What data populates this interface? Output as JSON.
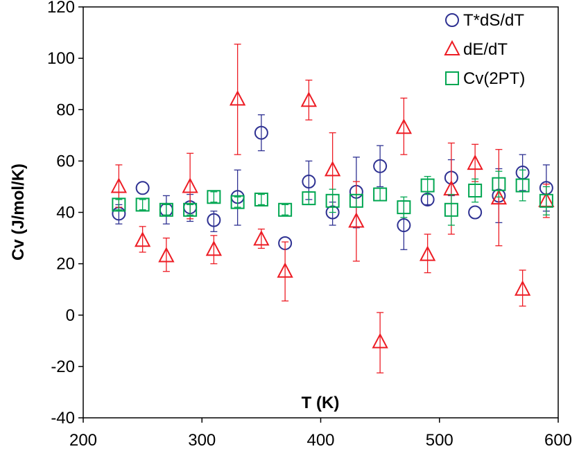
{
  "chart_data": {
    "type": "scatter",
    "xlabel": "T (K)",
    "ylabel": "Cv (J/mol/K)",
    "xlim": [
      200,
      600
    ],
    "ylim": [
      -40,
      120
    ],
    "xticks": [
      200,
      300,
      400,
      500,
      600
    ],
    "yticks": [
      -40,
      -20,
      0,
      20,
      40,
      60,
      80,
      100,
      120
    ],
    "grid": false,
    "legend_position": "top-right",
    "series": [
      {
        "name": "T*dS/dT",
        "marker": "circle",
        "color": "#2e3192",
        "points": [
          {
            "x": 230,
            "y": 39.5,
            "err_low": 35.5,
            "err_high": 43
          },
          {
            "x": 250,
            "y": 49.5,
            "err_low": 49.5,
            "err_high": 49.5
          },
          {
            "x": 270,
            "y": 41,
            "err_low": 35.5,
            "err_high": 46.5
          },
          {
            "x": 290,
            "y": 42,
            "err_low": 36.5,
            "err_high": 47
          },
          {
            "x": 310,
            "y": 37,
            "err_low": 32.5,
            "err_high": 40.5
          },
          {
            "x": 330,
            "y": 46,
            "err_low": 35,
            "err_high": 56.5
          },
          {
            "x": 350,
            "y": 71,
            "err_low": 64,
            "err_high": 78
          },
          {
            "x": 370,
            "y": 28,
            "err_low": 28,
            "err_high": 28
          },
          {
            "x": 390,
            "y": 52,
            "err_low": 45,
            "err_high": 60
          },
          {
            "x": 410,
            "y": 40,
            "err_low": 35,
            "err_high": 44
          },
          {
            "x": 430,
            "y": 48,
            "err_low": 34,
            "err_high": 61.5
          },
          {
            "x": 450,
            "y": 58,
            "err_low": 50,
            "err_high": 66
          },
          {
            "x": 470,
            "y": 35,
            "err_low": 25.5,
            "err_high": 44.5
          },
          {
            "x": 490,
            "y": 45,
            "err_low": 43,
            "err_high": 47
          },
          {
            "x": 510,
            "y": 53.5,
            "err_low": 46.5,
            "err_high": 60.5
          },
          {
            "x": 530,
            "y": 40,
            "err_low": 40,
            "err_high": 40
          },
          {
            "x": 550,
            "y": 46.5,
            "err_low": 36,
            "err_high": 57
          },
          {
            "x": 570,
            "y": 55.5,
            "err_low": 48.5,
            "err_high": 62.5
          },
          {
            "x": 590,
            "y": 49.5,
            "err_low": 40.5,
            "err_high": 58.5
          }
        ]
      },
      {
        "name": "dE/dT",
        "marker": "triangle",
        "color": "#ed1c24",
        "points": [
          {
            "x": 230,
            "y": 50,
            "err_low": 42,
            "err_high": 58.5
          },
          {
            "x": 250,
            "y": 29,
            "err_low": 24.5,
            "err_high": 34.5
          },
          {
            "x": 270,
            "y": 23,
            "err_low": 17,
            "err_high": 30
          },
          {
            "x": 290,
            "y": 50,
            "err_low": 37.5,
            "err_high": 63
          },
          {
            "x": 310,
            "y": 25.5,
            "err_low": 20,
            "err_high": 31
          },
          {
            "x": 330,
            "y": 84,
            "err_low": 62.5,
            "err_high": 105.5
          },
          {
            "x": 350,
            "y": 29.5,
            "err_low": 26,
            "err_high": 33.5
          },
          {
            "x": 370,
            "y": 17,
            "err_low": 5.5,
            "err_high": 28.5
          },
          {
            "x": 390,
            "y": 83.5,
            "err_low": 76,
            "err_high": 91.5
          },
          {
            "x": 410,
            "y": 56.5,
            "err_low": 42,
            "err_high": 71
          },
          {
            "x": 430,
            "y": 36.5,
            "err_low": 21,
            "err_high": 52
          },
          {
            "x": 450,
            "y": -10.5,
            "err_low": -22.5,
            "err_high": 1
          },
          {
            "x": 470,
            "y": 73,
            "err_low": 62.5,
            "err_high": 84.5
          },
          {
            "x": 490,
            "y": 23.5,
            "err_low": 16.5,
            "err_high": 31.5
          },
          {
            "x": 510,
            "y": 49,
            "err_low": 31.5,
            "err_high": 67
          },
          {
            "x": 530,
            "y": 59,
            "err_low": 52,
            "err_high": 66.5
          },
          {
            "x": 550,
            "y": 45.5,
            "err_low": 27,
            "err_high": 64.5
          },
          {
            "x": 570,
            "y": 10,
            "err_low": 3.5,
            "err_high": 17.5
          },
          {
            "x": 590,
            "y": 44.5,
            "err_low": 38,
            "err_high": 51
          }
        ]
      },
      {
        "name": "Cv(2PT)",
        "marker": "square",
        "color": "#00a651",
        "points": [
          {
            "x": 230,
            "y": 43,
            "err_low": 41,
            "err_high": 45
          },
          {
            "x": 250,
            "y": 43,
            "err_low": 41,
            "err_high": 45
          },
          {
            "x": 270,
            "y": 41,
            "err_low": 39,
            "err_high": 43
          },
          {
            "x": 290,
            "y": 41,
            "err_low": 39,
            "err_high": 43
          },
          {
            "x": 310,
            "y": 46,
            "err_low": 44,
            "err_high": 48
          },
          {
            "x": 330,
            "y": 44,
            "err_low": 42,
            "err_high": 46
          },
          {
            "x": 350,
            "y": 45,
            "err_low": 43,
            "err_high": 47
          },
          {
            "x": 370,
            "y": 41,
            "err_low": 39,
            "err_high": 43
          },
          {
            "x": 390,
            "y": 45.5,
            "err_low": 43,
            "err_high": 48
          },
          {
            "x": 410,
            "y": 44.5,
            "err_low": 40,
            "err_high": 49
          },
          {
            "x": 430,
            "y": 44.5,
            "err_low": 42,
            "err_high": 47
          },
          {
            "x": 450,
            "y": 47,
            "err_low": 44.5,
            "err_high": 49.5
          },
          {
            "x": 470,
            "y": 42,
            "err_low": 38,
            "err_high": 46
          },
          {
            "x": 490,
            "y": 50.5,
            "err_low": 47,
            "err_high": 54
          },
          {
            "x": 510,
            "y": 41,
            "err_low": 35,
            "err_high": 47
          },
          {
            "x": 530,
            "y": 48.5,
            "err_low": 44,
            "err_high": 53
          },
          {
            "x": 550,
            "y": 51,
            "err_low": 46,
            "err_high": 56
          },
          {
            "x": 570,
            "y": 50.5,
            "err_low": 44.5,
            "err_high": 56.5
          },
          {
            "x": 590,
            "y": 44.5,
            "err_low": 39,
            "err_high": 50
          }
        ]
      }
    ]
  }
}
